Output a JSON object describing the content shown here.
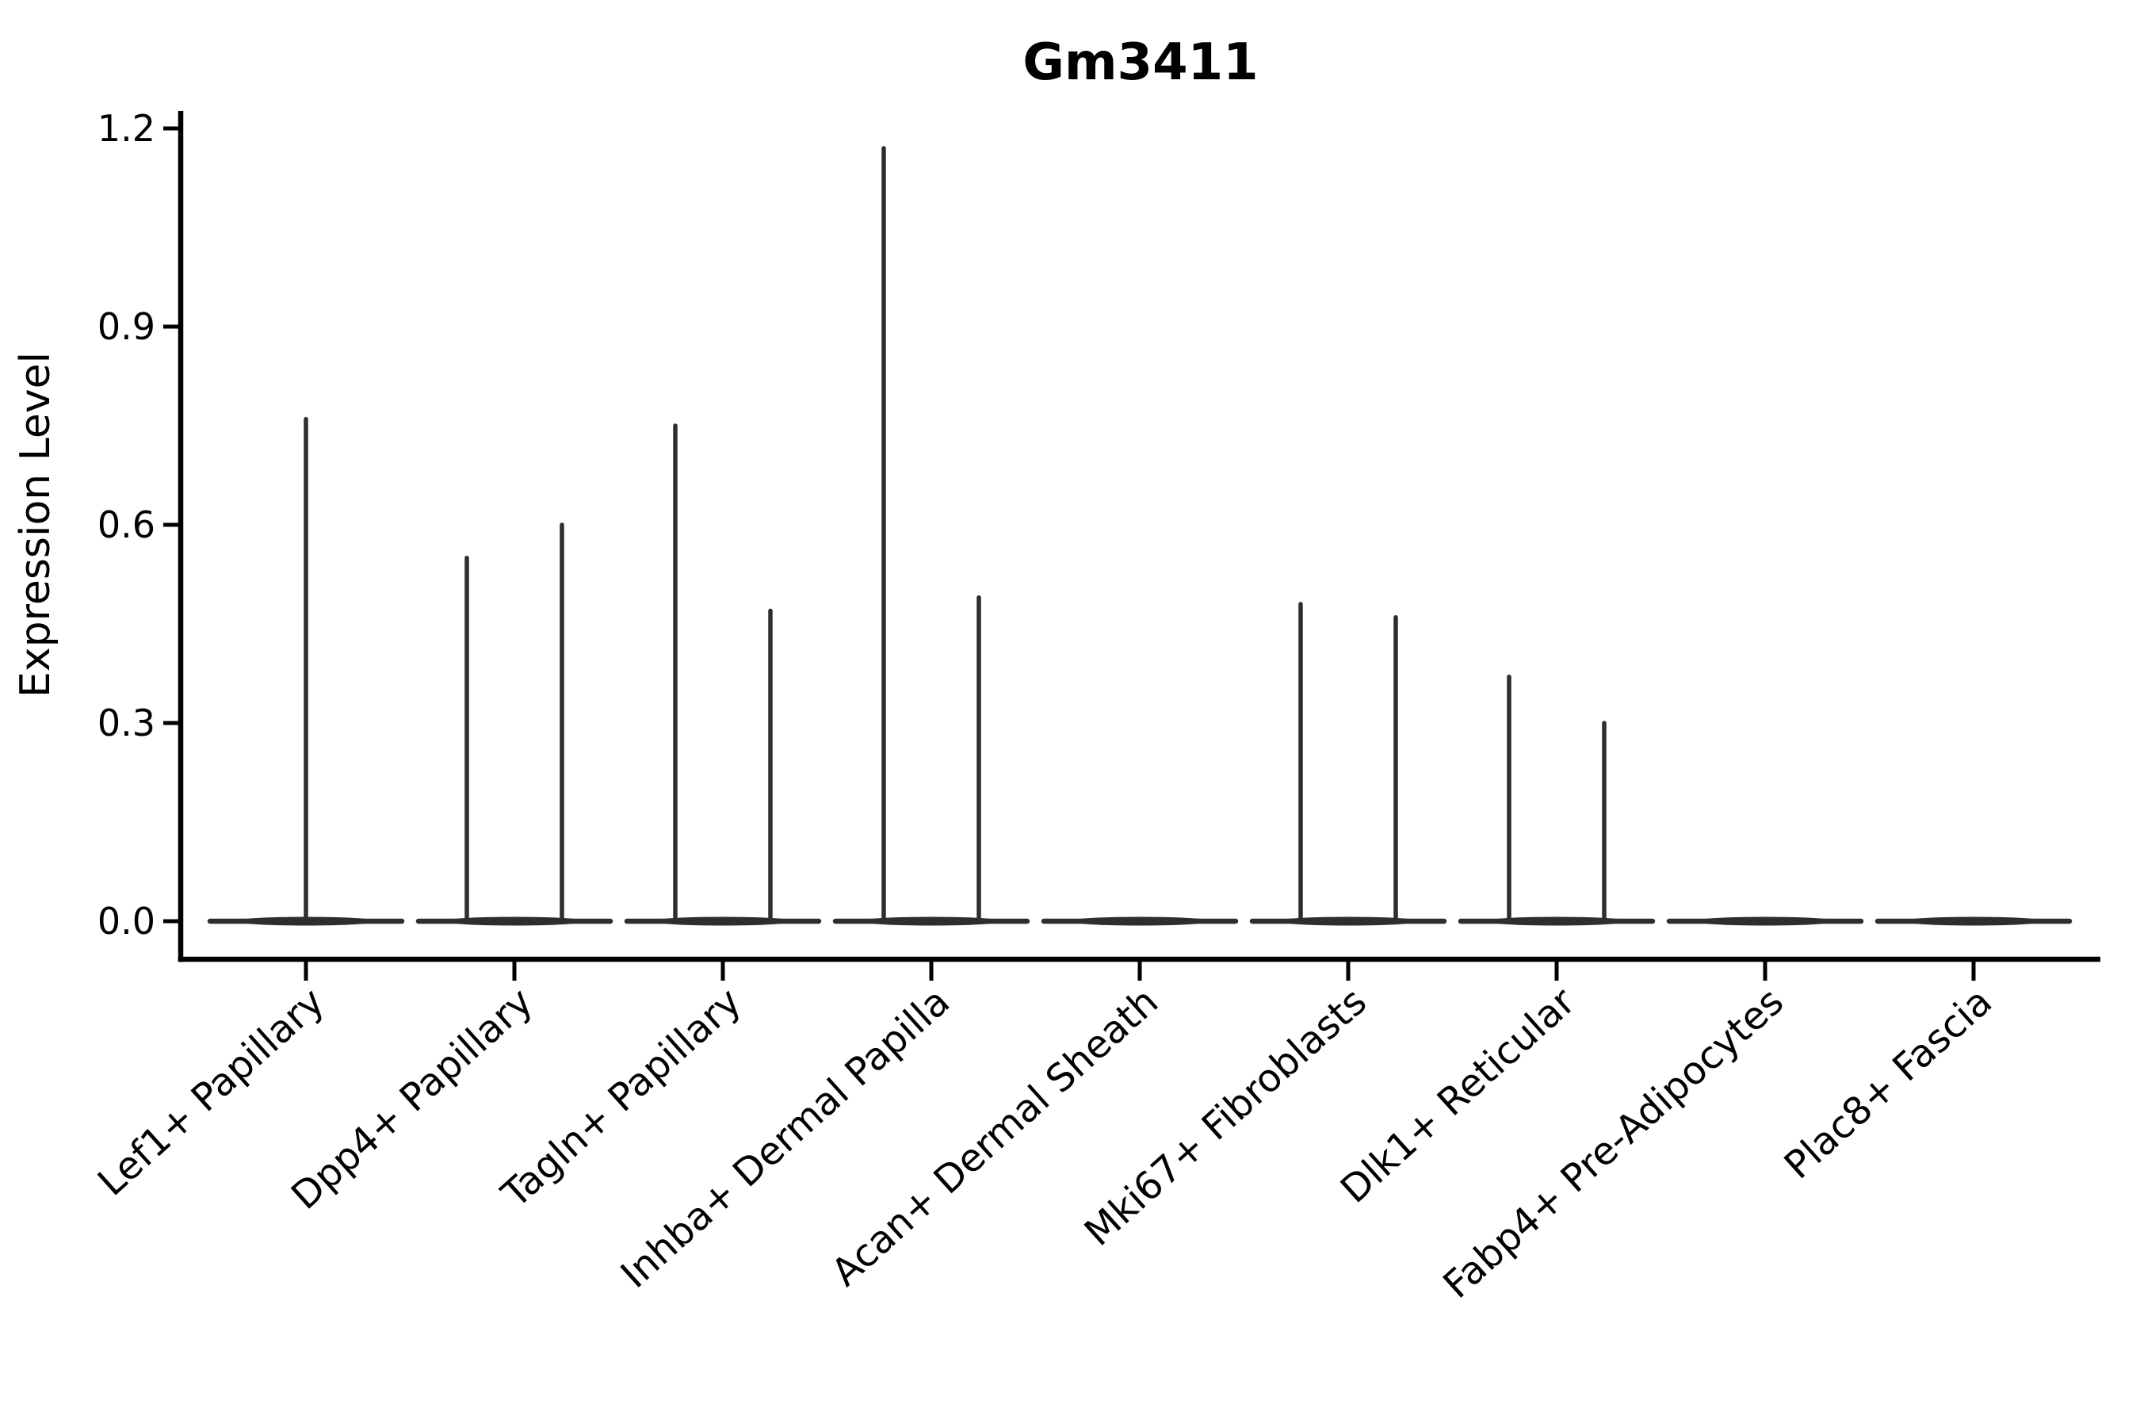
{
  "chart_data": {
    "type": "violin",
    "title": "Gm3411",
    "xlabel": "",
    "ylabel": "Expression Level",
    "ylim": [
      0.0,
      1.2
    ],
    "yticks": [
      0.0,
      0.3,
      0.6,
      0.9,
      1.2
    ],
    "ytick_labels": [
      "0.0",
      "0.3",
      "0.6",
      "0.9",
      "1.2"
    ],
    "grid": false,
    "legend": "none",
    "x_label_rotation_deg": 42,
    "categories": [
      "Lef1+ Papillary",
      "Dpp4+ Papillary",
      "Tagln+ Papillary",
      "Inhba+ Dermal Papilla",
      "Acan+ Dermal Sheath",
      "Mki67+ Fibroblasts",
      "Dlk1+ Reticular",
      "Fabp4+ Pre-Adipocytes",
      "Plac8+ Fascia"
    ],
    "violins": [
      {
        "category": "Lef1+ Papillary",
        "baseline_value": 0.0,
        "spikes": [
          {
            "side": "center",
            "value": 0.76
          }
        ]
      },
      {
        "category": "Dpp4+ Papillary",
        "baseline_value": 0.0,
        "spikes": [
          {
            "side": "left",
            "value": 0.55
          },
          {
            "side": "right",
            "value": 0.6
          }
        ]
      },
      {
        "category": "Tagln+ Papillary",
        "baseline_value": 0.0,
        "spikes": [
          {
            "side": "left",
            "value": 0.75
          },
          {
            "side": "right",
            "value": 0.47
          }
        ]
      },
      {
        "category": "Inhba+ Dermal Papilla",
        "baseline_value": 0.0,
        "spikes": [
          {
            "side": "left",
            "value": 1.17
          },
          {
            "side": "right",
            "value": 0.49
          }
        ]
      },
      {
        "category": "Acan+ Dermal Sheath",
        "baseline_value": 0.0,
        "spikes": []
      },
      {
        "category": "Mki67+ Fibroblasts",
        "baseline_value": 0.0,
        "spikes": [
          {
            "side": "left",
            "value": 0.48
          },
          {
            "side": "right",
            "value": 0.46
          }
        ]
      },
      {
        "category": "Dlk1+ Reticular",
        "baseline_value": 0.0,
        "spikes": [
          {
            "side": "left",
            "value": 0.37
          },
          {
            "side": "right",
            "value": 0.3
          }
        ]
      },
      {
        "category": "Fabp4+ Pre-Adipocytes",
        "baseline_value": 0.0,
        "spikes": []
      },
      {
        "category": "Plac8+ Fascia",
        "baseline_value": 0.0,
        "spikes": []
      }
    ],
    "colors": {
      "ink": "#000000",
      "violin": "#2e2e2e",
      "background": "#ffffff"
    }
  }
}
